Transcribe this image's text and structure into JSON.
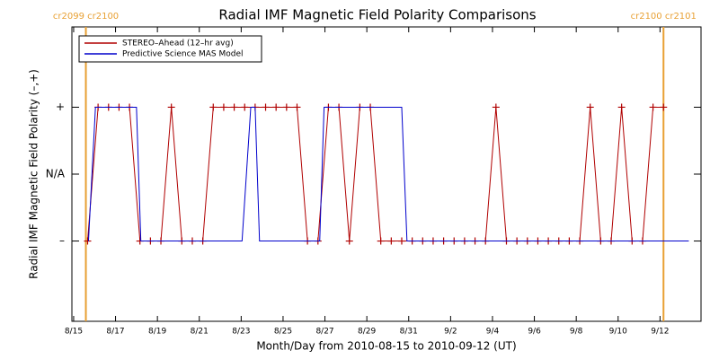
{
  "chart_data": {
    "type": "line",
    "title": "Radial IMF Magnetic Field Polarity Comparisons",
    "xlabel": "Month/Day from 2010-08-15 to 2010-09-12 (UT)",
    "ylabel": "Radial IMF Magnetic Field Polarity (–,+)",
    "xlim": [
      "2010-08-14T22:00",
      "2010-09-13T23:00"
    ],
    "xticks": [
      {
        "value": "2010-08-15T00:00",
        "label": "8/15"
      },
      {
        "value": "2010-08-17T00:00",
        "label": "8/17"
      },
      {
        "value": "2010-08-19T00:00",
        "label": "8/19"
      },
      {
        "value": "2010-08-21T00:00",
        "label": "8/21"
      },
      {
        "value": "2010-08-23T00:00",
        "label": "8/23"
      },
      {
        "value": "2010-08-25T00:00",
        "label": "8/25"
      },
      {
        "value": "2010-08-27T00:00",
        "label": "8/27"
      },
      {
        "value": "2010-08-29T00:00",
        "label": "8/29"
      },
      {
        "value": "2010-08-31T00:00",
        "label": "8/31"
      },
      {
        "value": "2010-09-02T00:00",
        "label": "9/2"
      },
      {
        "value": "2010-09-04T00:00",
        "label": "9/4"
      },
      {
        "value": "2010-09-06T00:00",
        "label": "9/6"
      },
      {
        "value": "2010-09-08T00:00",
        "label": "9/8"
      },
      {
        "value": "2010-09-10T00:00",
        "label": "9/10"
      },
      {
        "value": "2010-09-12T00:00",
        "label": "9/12"
      }
    ],
    "ylim": [
      -2.2,
      2.2
    ],
    "yticks": [
      {
        "value": 1,
        "label": "+"
      },
      {
        "value": 0,
        "label": "N/A"
      },
      {
        "value": -1,
        "label": "–"
      }
    ],
    "annotations": [
      {
        "text": "cr2099 cr2100",
        "x": "2010-08-15T14:00",
        "color": "#e8a033"
      },
      {
        "text": "cr2100 cr2101",
        "x": "2010-09-12T04:00",
        "color": "#e8a033"
      }
    ],
    "legend": "upper left",
    "series": [
      {
        "name": "STEREO–Ahead (12–hr avg)",
        "color": "#b00000",
        "marker": "+",
        "x": [
          "2010-08-15T16:00",
          "2010-08-16T04:00",
          "2010-08-16T16:00",
          "2010-08-17T04:00",
          "2010-08-17T16:00",
          "2010-08-18T04:00",
          "2010-08-18T16:00",
          "2010-08-19T04:00",
          "2010-08-19T16:00",
          "2010-08-20T04:00",
          "2010-08-20T16:00",
          "2010-08-21T04:00",
          "2010-08-21T16:00",
          "2010-08-22T04:00",
          "2010-08-22T16:00",
          "2010-08-23T04:00",
          "2010-08-23T16:00",
          "2010-08-24T04:00",
          "2010-08-24T16:00",
          "2010-08-25T04:00",
          "2010-08-25T16:00",
          "2010-08-26T04:00",
          "2010-08-26T16:00",
          "2010-08-27T04:00",
          "2010-08-27T16:00",
          "2010-08-28T04:00",
          "2010-08-28T16:00",
          "2010-08-29T04:00",
          "2010-08-29T16:00",
          "2010-08-30T04:00",
          "2010-08-30T16:00",
          "2010-08-31T04:00",
          "2010-08-31T16:00",
          "2010-09-01T04:00",
          "2010-09-01T16:00",
          "2010-09-02T04:00",
          "2010-09-02T16:00",
          "2010-09-03T04:00",
          "2010-09-03T16:00",
          "2010-09-04T04:00",
          "2010-09-04T16:00",
          "2010-09-05T04:00",
          "2010-09-05T16:00",
          "2010-09-06T04:00",
          "2010-09-06T16:00",
          "2010-09-07T04:00",
          "2010-09-07T16:00",
          "2010-09-08T04:00",
          "2010-09-08T16:00",
          "2010-09-09T04:00",
          "2010-09-09T16:00",
          "2010-09-10T04:00",
          "2010-09-10T16:00",
          "2010-09-11T04:00",
          "2010-09-11T16:00",
          "2010-09-12T04:00"
        ],
        "values": [
          -1,
          1,
          1,
          1,
          1,
          -1,
          -1,
          -1,
          1,
          -1,
          -1,
          -1,
          1,
          1,
          1,
          1,
          1,
          1,
          1,
          1,
          1,
          -1,
          -1,
          1,
          1,
          -1,
          1,
          1,
          -1,
          -1,
          -1,
          -1,
          -1,
          -1,
          -1,
          -1,
          -1,
          -1,
          -1,
          1,
          -1,
          -1,
          -1,
          -1,
          -1,
          -1,
          -1,
          -1,
          1,
          -1,
          -1,
          1,
          -1,
          -1,
          1,
          1
        ]
      },
      {
        "name": "Predictive Science MAS Model",
        "color": "#0000cc",
        "x": [
          "2010-08-15T17:00",
          "2010-08-16T01:00",
          "2010-08-18T00:00",
          "2010-08-18T05:00",
          "2010-08-23T01:00",
          "2010-08-23T11:00",
          "2010-08-23T16:00",
          "2010-08-23T21:00",
          "2010-08-26T18:00",
          "2010-08-26T23:00",
          "2010-08-30T16:00",
          "2010-08-30T22:00",
          "2010-09-13T09:00"
        ],
        "values": [
          -1,
          1,
          1,
          -1,
          -1,
          1,
          1,
          -1,
          -1,
          1,
          1,
          -1,
          -1
        ]
      }
    ]
  }
}
